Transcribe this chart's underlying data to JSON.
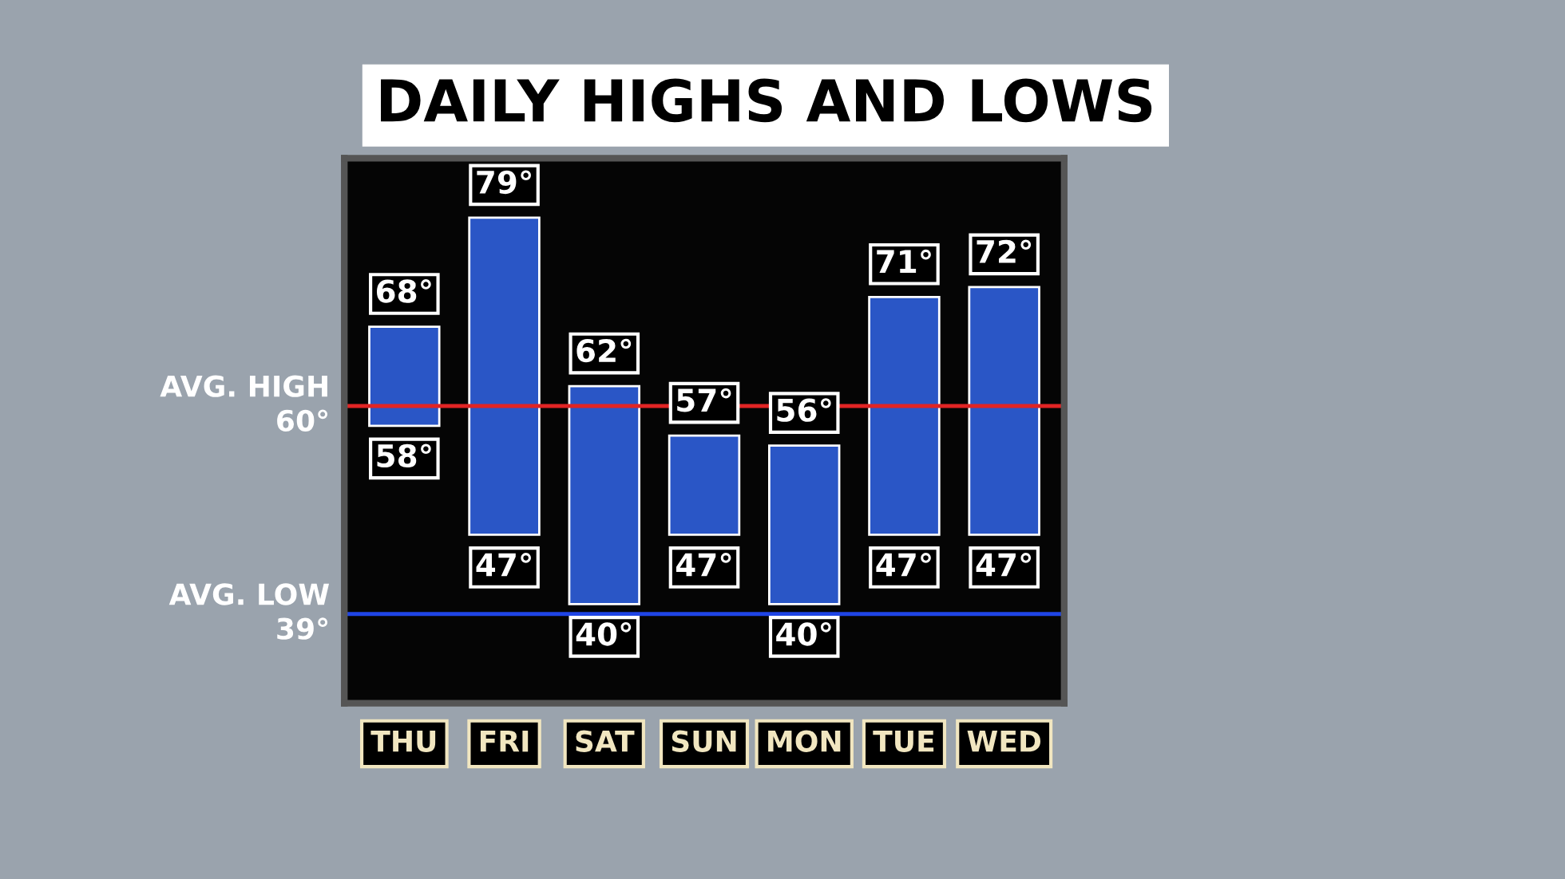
{
  "chart_data": {
    "type": "bar",
    "title": "DAILY HIGHS AND LOWS",
    "categories": [
      "THU",
      "FRI",
      "SAT",
      "SUN",
      "MON",
      "TUE",
      "WED"
    ],
    "base": [
      58,
      47,
      40,
      47,
      40,
      47,
      47
    ],
    "values": [
      10,
      32,
      22,
      10,
      16,
      24,
      25
    ],
    "color": "#2a56c6",
    "ylim": [
      30,
      85
    ],
    "tick_labels": "x",
    "grid": false,
    "ref_lines": [
      {
        "axis": "y",
        "value": 60,
        "label": "AVG. HIGH\n60°",
        "color": "#e02424"
      },
      {
        "axis": "y",
        "value": 39,
        "label": "AVG. LOW\n39°",
        "color": "#1f45e6"
      }
    ],
    "annotations": [
      {
        "text": "68°",
        "x": "THU",
        "y": 68
      },
      {
        "text": "58°",
        "x": "THU",
        "y": 58
      },
      {
        "text": "79°",
        "x": "FRI",
        "y": 79
      },
      {
        "text": "47°",
        "x": "FRI",
        "y": 47
      },
      {
        "text": "62°",
        "x": "SAT",
        "y": 62
      },
      {
        "text": "40°",
        "x": "SAT",
        "y": 40
      },
      {
        "text": "57°",
        "x": "SUN",
        "y": 57
      },
      {
        "text": "47°",
        "x": "SUN",
        "y": 47
      },
      {
        "text": "56°",
        "x": "MON",
        "y": 56
      },
      {
        "text": "40°",
        "x": "MON",
        "y": 40
      },
      {
        "text": "71°",
        "x": "TUE",
        "y": 71
      },
      {
        "text": "47°",
        "x": "TUE",
        "y": 47
      },
      {
        "text": "72°",
        "x": "WED",
        "y": 72
      },
      {
        "text": "47°",
        "x": "WED",
        "y": 47
      }
    ]
  }
}
